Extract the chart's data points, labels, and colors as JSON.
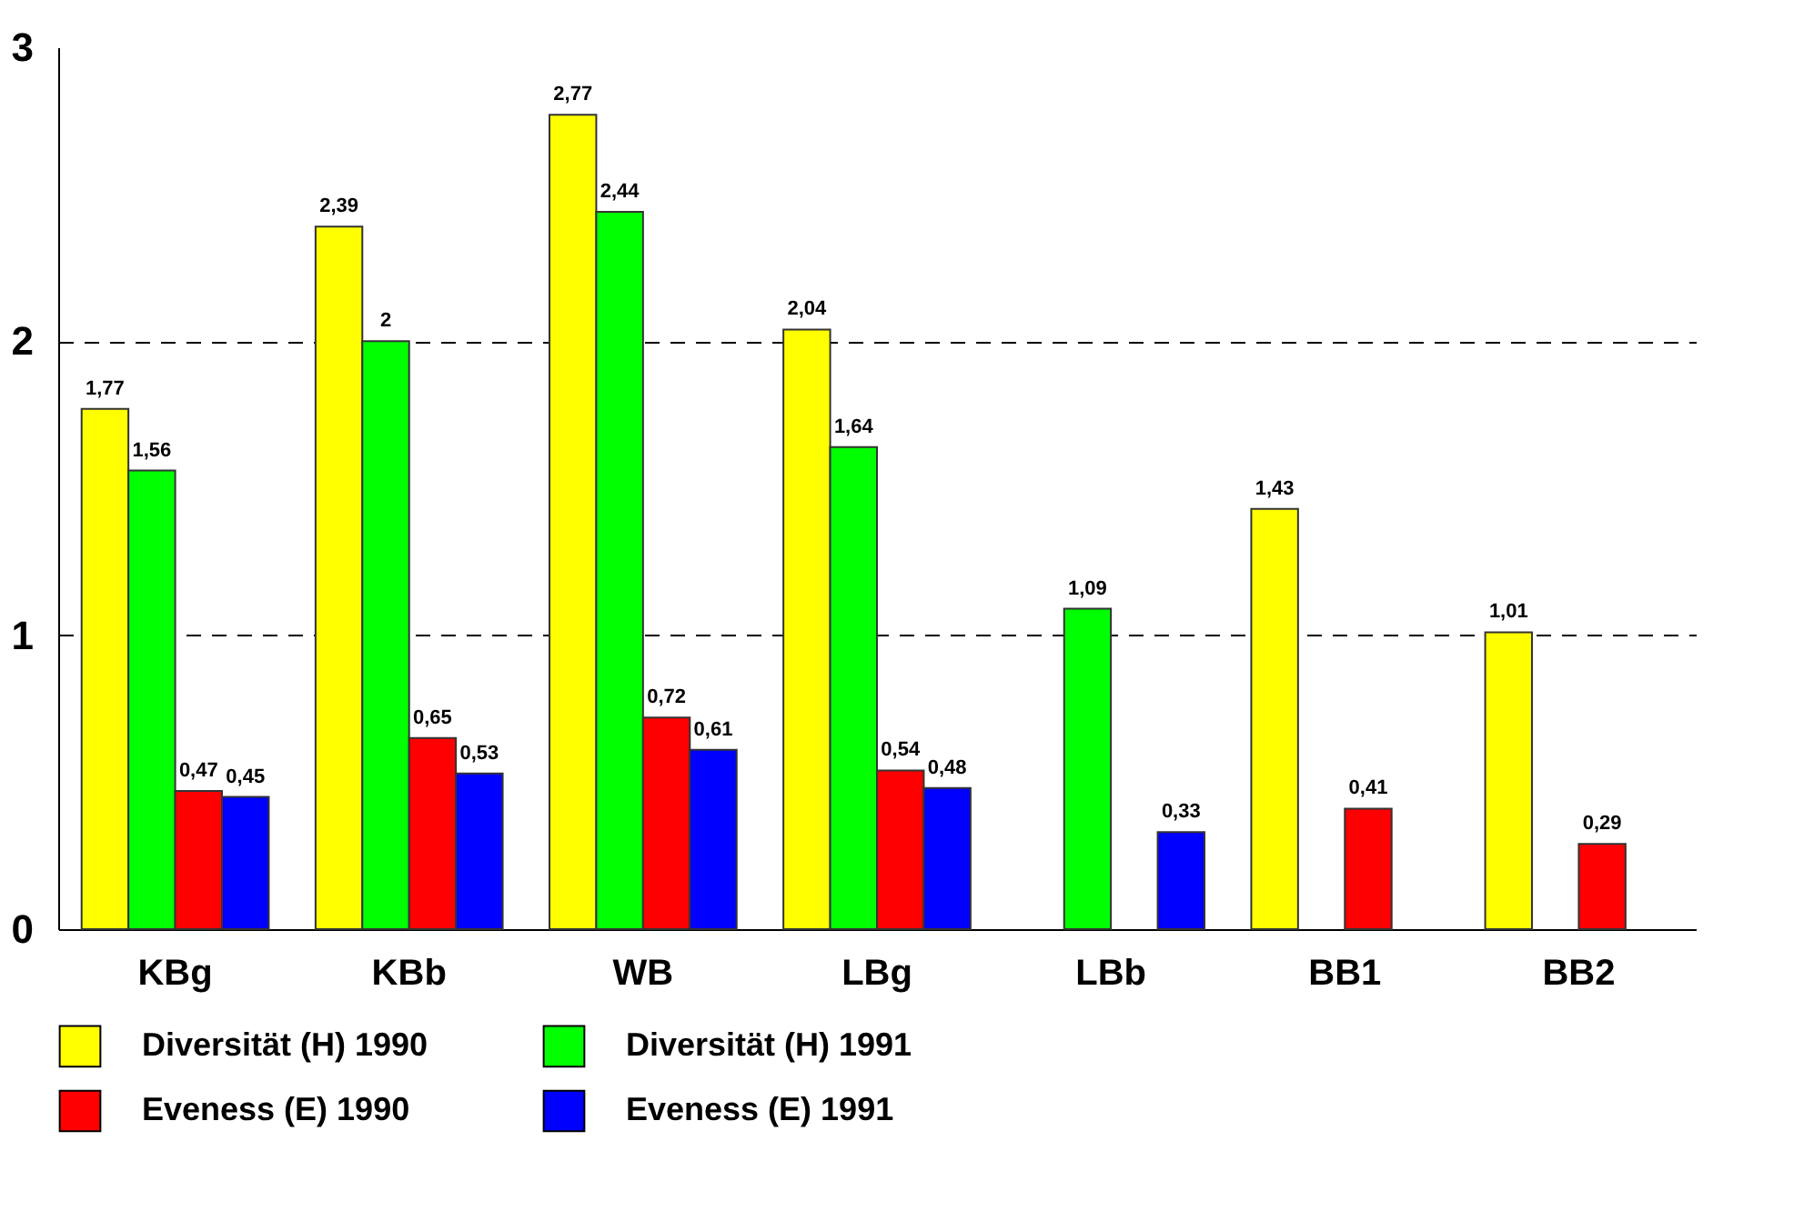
{
  "chart_data": {
    "type": "bar",
    "categories": [
      "KBg",
      "KBb",
      "WB",
      "LBg",
      "LBb",
      "BB1",
      "BB2"
    ],
    "series": [
      {
        "name": "Diversität (H) 1990",
        "color": "#ffff00",
        "values": [
          1.77,
          2.39,
          2.77,
          2.04,
          null,
          1.43,
          1.01
        ],
        "value_labels": [
          "1,77",
          "2,39",
          "2,77",
          "2,04",
          null,
          "1,43",
          "1,01"
        ]
      },
      {
        "name": "Diversität (H) 1991",
        "color": "#00ff00",
        "values": [
          1.56,
          2,
          2.44,
          1.64,
          1.09,
          null,
          null
        ],
        "value_labels": [
          "1,56",
          "2",
          "2,44",
          "1,64",
          "1,09",
          null,
          null
        ]
      },
      {
        "name": "Eveness (E) 1990",
        "color": "#ff0000",
        "values": [
          0.47,
          0.65,
          0.72,
          0.54,
          null,
          0.41,
          0.29
        ],
        "value_labels": [
          "0,47",
          "0,65",
          "0,72",
          "0,54",
          null,
          "0,41",
          "0,29"
        ]
      },
      {
        "name": "Eveness (E) 1991",
        "color": "#0000ff",
        "values": [
          0.45,
          0.53,
          0.61,
          0.48,
          0.33,
          null,
          null
        ],
        "value_labels": [
          "0,45",
          "0,53",
          "0,61",
          "0,48",
          "0,33",
          null,
          null
        ]
      }
    ],
    "ylim": [
      0,
      3
    ],
    "yticks": [
      0,
      1,
      2,
      3
    ],
    "grid": "y",
    "line_style": "dashed",
    "legend": "bottom"
  }
}
